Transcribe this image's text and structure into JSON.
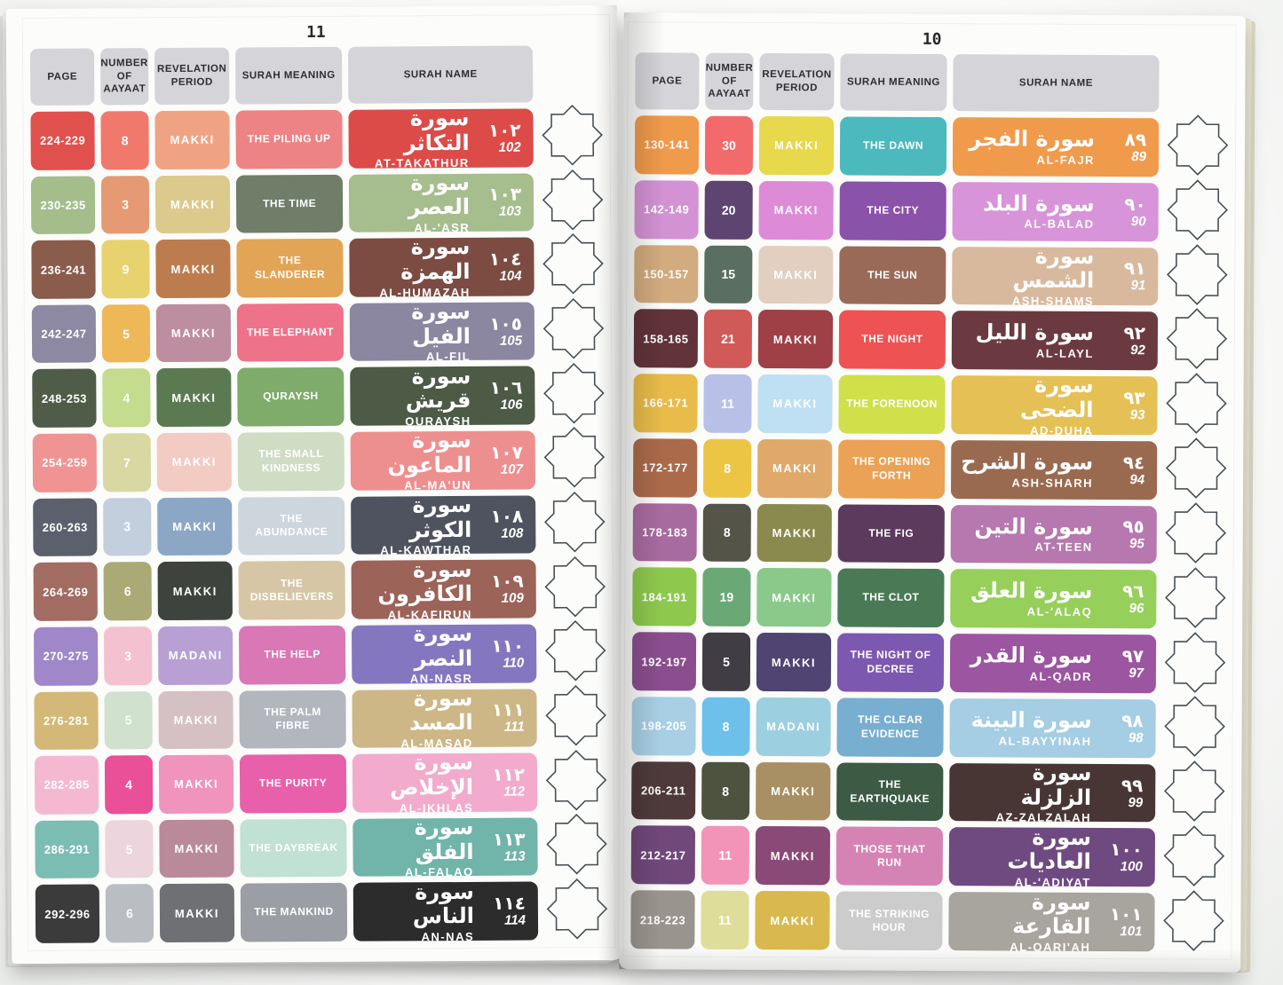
{
  "photo": {
    "background_color": "#fbfbfa",
    "page_color": "#fcfcfb",
    "header_cell_color": "#d5d5d9",
    "header_text_color": "#2d2e30",
    "star_outline_color": "#454e52",
    "page_block_edge_color": "#ebe7d6"
  },
  "star_chain": {
    "count_per_page": 13
  },
  "pages": [
    {
      "side": "left",
      "page_number": "11",
      "headers": [
        "PAGE",
        "NUMBER OF AAYAAT",
        "REVELATION PERIOD",
        "SURAH MEANING",
        "SURAH NAME"
      ],
      "rows": [
        {
          "page": "224-229",
          "aayaat": "8",
          "period": "MAKKI",
          "meaning": "THE PILING UP",
          "arabic": "سورة التكاثر",
          "translit": "AT-TAKATHUR",
          "number_arabic": "١٠٢",
          "number": "102",
          "colors": [
            "#e0504d",
            "#f0796b",
            "#f0a383",
            "#ed8384",
            "#dc4b47"
          ]
        },
        {
          "page": "230-235",
          "aayaat": "3",
          "period": "MAKKI",
          "meaning": "THE TIME",
          "arabic": "سورة العصر",
          "translit": "AL-'ASR",
          "number_arabic": "١٠٣",
          "number": "103",
          "colors": [
            "#a4bd8b",
            "#e59a73",
            "#dcc98c",
            "#6f7d69",
            "#a6bd8d"
          ]
        },
        {
          "page": "236-241",
          "aayaat": "9",
          "period": "MAKKI",
          "meaning": "THE SLANDERER",
          "arabic": "سورة الهمزة",
          "translit": "AL-HUMAZAH",
          "number_arabic": "١٠٤",
          "number": "104",
          "colors": [
            "#8a5c4c",
            "#e8d26e",
            "#bd7c4e",
            "#e2a455",
            "#7c4b42"
          ]
        },
        {
          "page": "242-247",
          "aayaat": "5",
          "period": "MAKKI",
          "meaning": "THE ELEPHANT",
          "arabic": "سورة الفيل",
          "translit": "AL-FIL",
          "number_arabic": "١٠٥",
          "number": "105",
          "colors": [
            "#8d89a2",
            "#eeb757",
            "#bd8da0",
            "#ee7289",
            "#8b87a1"
          ]
        },
        {
          "page": "248-253",
          "aayaat": "4",
          "period": "MAKKI",
          "meaning": "QURAYSH",
          "arabic": "سورة قريش",
          "translit": "QURAYSH",
          "number_arabic": "١٠٦",
          "number": "106",
          "colors": [
            "#4e5c48",
            "#c4dc8d",
            "#5c7a52",
            "#7fab6b",
            "#4c5a46"
          ]
        },
        {
          "page": "254-259",
          "aayaat": "7",
          "period": "MAKKI",
          "meaning": "THE SMALL KINDNESS",
          "arabic": "سورة الماعون",
          "translit": "AL-MA'UN",
          "number_arabic": "١٠٧",
          "number": "107",
          "colors": [
            "#ef9492",
            "#d8d8a2",
            "#f2cbc3",
            "#d0ddc5",
            "#ee8f8f"
          ]
        },
        {
          "page": "260-263",
          "aayaat": "3",
          "period": "MAKKI",
          "meaning": "THE ABUNDANCE",
          "arabic": "سورة الكوثر",
          "translit": "AL-KAWTHAR",
          "number_arabic": "١٠٨",
          "number": "108",
          "colors": [
            "#5c606c",
            "#c4cfdd",
            "#8ca7c6",
            "#cdd5dd",
            "#4f535f"
          ]
        },
        {
          "page": "264-269",
          "aayaat": "6",
          "period": "MAKKI",
          "meaning": "THE DISBELIEVERS",
          "arabic": "سورة الكافرون",
          "translit": "AL-KAFIRUN",
          "number_arabic": "١٠٩",
          "number": "109",
          "colors": [
            "#a26c62",
            "#a9aa75",
            "#3e433d",
            "#d7c6a5",
            "#9c6358"
          ]
        },
        {
          "page": "270-275",
          "aayaat": "3",
          "period": "MADANI",
          "meaning": "THE HELP",
          "arabic": "سورة النصر",
          "translit": "AN-NASR",
          "number_arabic": "١١٠",
          "number": "110",
          "colors": [
            "#9f87c9",
            "#f4c1d0",
            "#b8a0d5",
            "#da77b5",
            "#8577bf"
          ]
        },
        {
          "page": "276-281",
          "aayaat": "5",
          "period": "MAKKI",
          "meaning": "THE PALM FIBRE",
          "arabic": "سورة المسد",
          "translit": "AL-MASAD",
          "number_arabic": "١١١",
          "number": "111",
          "colors": [
            "#d3b878",
            "#d0e1ce",
            "#d5c0c3",
            "#b4b6be",
            "#cdb787"
          ]
        },
        {
          "page": "282-285",
          "aayaat": "4",
          "period": "MAKKI",
          "meaning": "THE PURITY",
          "arabic": "سورة الإخلاص",
          "translit": "AL-IKHLAS",
          "number_arabic": "١١٢",
          "number": "112",
          "colors": [
            "#f4b9d1",
            "#ea5097",
            "#f094bd",
            "#e860a9",
            "#f2abcc"
          ]
        },
        {
          "page": "286-291",
          "aayaat": "5",
          "period": "MAKKI",
          "meaning": "THE DAYBREAK",
          "arabic": "سورة الفلق",
          "translit": "AL-FALAQ",
          "number_arabic": "١١٣",
          "number": "113",
          "colors": [
            "#7cbdb3",
            "#ecd5dd",
            "#ba8a9a",
            "#c0e1d3",
            "#70b4aa"
          ]
        },
        {
          "page": "292-296",
          "aayaat": "6",
          "period": "MAKKI",
          "meaning": "THE MANKIND",
          "arabic": "سورة الناس",
          "translit": "AN-NAS",
          "number_arabic": "١١٤",
          "number": "114",
          "colors": [
            "#3b3b3b",
            "#babdc1",
            "#6e7074",
            "#9b9ea4",
            "#2c2c2c"
          ]
        }
      ]
    },
    {
      "side": "right",
      "page_number": "10",
      "headers": [
        "PAGE",
        "NUMBER OF AAYAAT",
        "REVELATION PERIOD",
        "SURAH MEANING",
        "SURAH NAME"
      ],
      "rows": [
        {
          "page": "130-141",
          "aayaat": "30",
          "period": "MAKKI",
          "meaning": "THE DAWN",
          "arabic": "سورة الفجر",
          "translit": "AL-FAJR",
          "number_arabic": "٨٩",
          "number": "89",
          "colors": [
            "#f09a4b",
            "#f26a6b",
            "#e8d84b",
            "#4bb9bd",
            "#f09b4c"
          ]
        },
        {
          "page": "142-149",
          "aayaat": "20",
          "period": "MAKKI",
          "meaning": "THE CITY",
          "arabic": "سورة البلد",
          "translit": "AL-BALAD",
          "number_arabic": "٩٠",
          "number": "90",
          "colors": [
            "#d392d4",
            "#5e4571",
            "#de8bd7",
            "#8a52a9",
            "#d794d8"
          ]
        },
        {
          "page": "150-157",
          "aayaat": "15",
          "period": "MAKKI",
          "meaning": "THE SUN",
          "arabic": "سورة الشمس",
          "translit": "ASH-SHAMS",
          "number_arabic": "٩١",
          "number": "91",
          "colors": [
            "#d2ab7f",
            "#5a6e62",
            "#e3cfc0",
            "#9a6a58",
            "#d9b99e"
          ]
        },
        {
          "page": "158-165",
          "aayaat": "21",
          "period": "MAKKI",
          "meaning": "THE NIGHT",
          "arabic": "سورة الليل",
          "translit": "AL-LAYL",
          "number_arabic": "٩٢",
          "number": "92",
          "colors": [
            "#62333a",
            "#d05a58",
            "#9e4046",
            "#ee5253",
            "#6b3a40"
          ]
        },
        {
          "page": "166-171",
          "aayaat": "11",
          "period": "MAKKI",
          "meaning": "THE FORENOON",
          "arabic": "سورة الضحى",
          "translit": "AD-DUHA",
          "number_arabic": "٩٣",
          "number": "93",
          "colors": [
            "#e8bb4a",
            "#b8c0e8",
            "#bfe0f2",
            "#cfe04a",
            "#e5c054"
          ]
        },
        {
          "page": "172-177",
          "aayaat": "8",
          "period": "MAKKI",
          "meaning": "THE OPENING FORTH",
          "arabic": "سورة الشرح",
          "translit": "ASH-SHARH",
          "number_arabic": "٩٤",
          "number": "94",
          "colors": [
            "#ab6a4a",
            "#ecc545",
            "#e0a96a",
            "#eba254",
            "#9a6a50"
          ]
        },
        {
          "page": "178-183",
          "aayaat": "8",
          "period": "MAKKI",
          "meaning": "THE FIG",
          "arabic": "سورة التين",
          "translit": "AT-TEEN",
          "number_arabic": "٩٥",
          "number": "95",
          "colors": [
            "#a86ba0",
            "#545448",
            "#8a8a4e",
            "#5c3a5e",
            "#b678ae"
          ]
        },
        {
          "page": "184-191",
          "aayaat": "19",
          "period": "MAKKI",
          "meaning": "THE CLOT",
          "arabic": "سورة العلق",
          "translit": "AL-'ALAQ",
          "number_arabic": "٩٦",
          "number": "96",
          "colors": [
            "#8ec94e",
            "#6aa876",
            "#8bc98a",
            "#4a7a55",
            "#96cf5a"
          ]
        },
        {
          "page": "192-197",
          "aayaat": "5",
          "period": "MAKKI",
          "meaning": "THE NIGHT OF DECREE",
          "arabic": "سورة القدر",
          "translit": "AL-QADR",
          "number_arabic": "٩٧",
          "number": "97",
          "colors": [
            "#8a4e8e",
            "#413d44",
            "#4f4472",
            "#7d58b0",
            "#9c55a0"
          ]
        },
        {
          "page": "198-205",
          "aayaat": "8",
          "period": "MADANI",
          "meaning": "THE CLEAR EVIDENCE",
          "arabic": "سورة البينة",
          "translit": "AL-BAYYINAH",
          "number_arabic": "٩٨",
          "number": "98",
          "colors": [
            "#a8cfe4",
            "#6cc0ea",
            "#9ccfe0",
            "#78aed0",
            "#a5cde4"
          ]
        },
        {
          "page": "206-211",
          "aayaat": "8",
          "period": "MAKKI",
          "meaning": "THE EARTHQUAKE",
          "arabic": "سورة الزلزلة",
          "translit": "AZ-ZALZALAH",
          "number_arabic": "٩٩",
          "number": "99",
          "colors": [
            "#4e3a3a",
            "#4e5340",
            "#a89064",
            "#3c5a44",
            "#483634"
          ]
        },
        {
          "page": "212-217",
          "aayaat": "11",
          "period": "MAKKI",
          "meaning": "THOSE THAT RUN",
          "arabic": "سورة العاديات",
          "translit": "AL-'ADIYAT",
          "number_arabic": "١٠٠",
          "number": "100",
          "colors": [
            "#70487a",
            "#f293b8",
            "#8a4a78",
            "#d583b4",
            "#6f4a80"
          ]
        },
        {
          "page": "218-223",
          "aayaat": "11",
          "period": "MAKKI",
          "meaning": "THE STRIKING HOUR",
          "arabic": "سورة القارعة",
          "translit": "AL-QARI'AH",
          "number_arabic": "١٠١",
          "number": "101",
          "colors": [
            "#9a948e",
            "#dede9a",
            "#d9b94e",
            "#cccccc",
            "#a8a49e"
          ]
        }
      ]
    }
  ]
}
